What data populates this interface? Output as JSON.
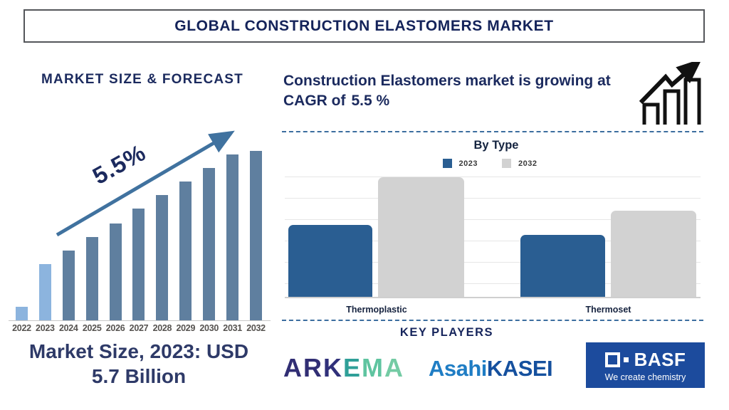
{
  "title": {
    "text": "GLOBAL CONSTRUCTION ELASTOMERS MARKET"
  },
  "left_panel": {
    "caption_line1": "Market Size, 2023: USD",
    "caption_line2": "5.7 Billion"
  },
  "right_panel": {
    "growth_prefix": "Construction Elastomers market is growing at CAGR of",
    "growth_value": "5.5 %"
  },
  "chart_data": [
    {
      "type": "bar",
      "title": "MARKET SIZE & FORECAST",
      "categories": [
        "2022",
        "2023",
        "2024",
        "2025",
        "2026",
        "2027",
        "2028",
        "2029",
        "2030",
        "2031",
        "2032"
      ],
      "values": [
        8,
        33,
        41,
        49,
        57,
        66,
        74,
        82,
        90,
        98,
        100
      ],
      "ylim": [
        0,
        100
      ],
      "grid": false,
      "annotation": "5.5%",
      "annotation_meaning": "CAGR growth arrow label",
      "colors": {
        "highlight": "#8cb4de",
        "normal": "#5f7f9f",
        "arrow": "#40729f"
      },
      "highlighted_categories": [
        "2022",
        "2023"
      ],
      "note": "values are relative bar heights in % of tallest bar; 2023 market size is USD 5.7 Billion"
    },
    {
      "type": "bar",
      "title": "By Type",
      "categories": [
        "Thermoplastic",
        "Thermoset"
      ],
      "series": [
        {
          "name": "2023",
          "color": "#2a5e92",
          "values": [
            60,
            52
          ]
        },
        {
          "name": "2032",
          "color": "#d2d2d2",
          "values": [
            100,
            72
          ]
        }
      ],
      "ylim": [
        0,
        100
      ],
      "grid": true,
      "legend_position": "top",
      "note": "values are relative bar heights in % of tallest bar"
    }
  ],
  "key_players": {
    "heading": "KEY PLAYERS",
    "arkema": {
      "name": "ARKEMA",
      "letters": [
        {
          "ch": "A",
          "color": "#312e74"
        },
        {
          "ch": "R",
          "color": "#312e74"
        },
        {
          "ch": "K",
          "color": "#30307a"
        },
        {
          "ch": "E",
          "color": "#2f9f98"
        },
        {
          "ch": "M",
          "color": "#5fc4a0"
        },
        {
          "ch": "A",
          "color": "#74cba4"
        }
      ]
    },
    "asahi_kasei": {
      "part1": "Asahi",
      "part2": "KASEI",
      "color1": "#1f7dc4",
      "color2": "#15509e"
    },
    "basf": {
      "name": "BASF",
      "tagline": "We create chemistry",
      "bg": "#1c4b9d"
    }
  }
}
